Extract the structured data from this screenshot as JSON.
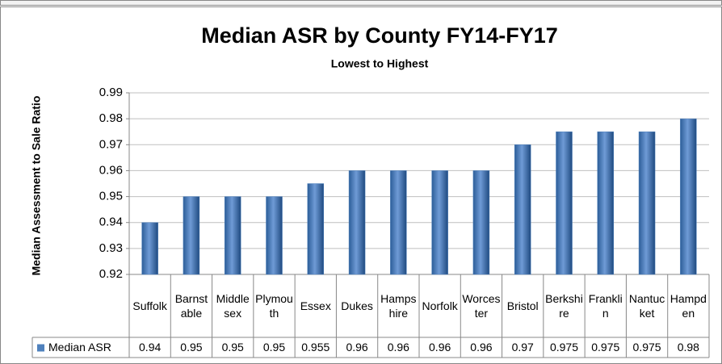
{
  "chart_data": {
    "type": "bar",
    "title": "Median ASR by County FY14-FY17",
    "subtitle": "Lowest to Highest",
    "y_label": "Median Assessment to Sale Ratio",
    "categories": [
      "Suffolk",
      "Barnstable",
      "Middlesex",
      "Plymouth",
      "Essex",
      "Dukes",
      "Hampshire",
      "Norfolk",
      "Worcester",
      "Bristol",
      "Berkshire",
      "Franklin",
      "Nantucket",
      "Hampden"
    ],
    "series": [
      {
        "name": "Median ASR",
        "color": "#4f81bd",
        "values": [
          0.94,
          0.95,
          0.95,
          0.95,
          0.955,
          0.96,
          0.96,
          0.96,
          0.96,
          0.97,
          0.975,
          0.975,
          0.975,
          0.98
        ]
      }
    ],
    "ylim": [
      0.92,
      0.99
    ],
    "yticks": [
      0.92,
      0.93,
      0.94,
      0.95,
      0.96,
      0.97,
      0.98,
      0.99
    ],
    "grid": true
  }
}
